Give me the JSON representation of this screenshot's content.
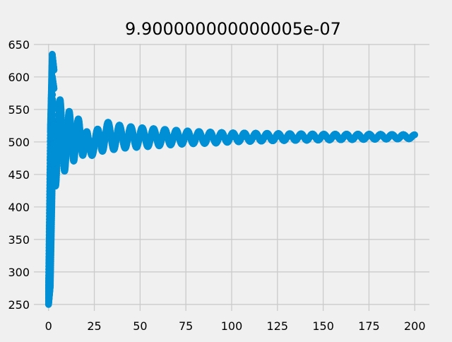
{
  "chart_data": {
    "type": "scatter",
    "title": "9.900000000000005e-07",
    "xlabel": "",
    "ylabel": "",
    "xlim": [
      -8,
      208
    ],
    "ylim": [
      240,
      651
    ],
    "xticks": [
      0,
      25,
      50,
      75,
      100,
      125,
      150,
      175,
      200
    ],
    "xtick_labels": [
      "0",
      "25",
      "50",
      "75",
      "100",
      "125",
      "150",
      "175",
      "200"
    ],
    "yticks": [
      250,
      300,
      350,
      400,
      450,
      500,
      550,
      600,
      650
    ],
    "ytick_labels": [
      "250",
      "300",
      "350",
      "400",
      "450",
      "500",
      "550",
      "600",
      "650"
    ],
    "grid": true,
    "legend": "none",
    "colors": {
      "background": "#f0f0f0",
      "grid": "#cbcbcb",
      "series": "#008fd5",
      "text": "#000000"
    },
    "series": [
      {
        "marker": "circle",
        "envelope": [
          {
            "x": 0,
            "min": 250,
            "max": 280
          },
          {
            "x": 1,
            "min": 280,
            "max": 520
          },
          {
            "x": 2,
            "min": 430,
            "max": 635
          },
          {
            "x": 3,
            "min": 440,
            "max": 610
          },
          {
            "x": 5,
            "min": 420,
            "max": 560
          },
          {
            "x": 8,
            "min": 455,
            "max": 572
          },
          {
            "x": 10,
            "min": 455,
            "max": 545
          },
          {
            "x": 13,
            "min": 470,
            "max": 550
          },
          {
            "x": 16,
            "min": 472,
            "max": 535
          },
          {
            "x": 19,
            "min": 480,
            "max": 540
          },
          {
            "x": 22,
            "min": 478,
            "max": 505
          },
          {
            "x": 25,
            "min": 480,
            "max": 505
          },
          {
            "x": 28,
            "min": 485,
            "max": 533
          },
          {
            "x": 33,
            "min": 487,
            "max": 530
          },
          {
            "x": 40,
            "min": 490,
            "max": 525
          },
          {
            "x": 50,
            "min": 492,
            "max": 522
          },
          {
            "x": 60,
            "min": 494,
            "max": 520
          },
          {
            "x": 75,
            "min": 497,
            "max": 517
          },
          {
            "x": 90,
            "min": 498,
            "max": 515
          },
          {
            "x": 100,
            "min": 500,
            "max": 514
          },
          {
            "x": 125,
            "min": 502,
            "max": 513
          },
          {
            "x": 150,
            "min": 503,
            "max": 512
          },
          {
            "x": 175,
            "min": 504,
            "max": 512
          },
          {
            "x": 200,
            "min": 505,
            "max": 511
          }
        ],
        "oscillation_period": 6.2,
        "center_value": 508
      }
    ]
  }
}
